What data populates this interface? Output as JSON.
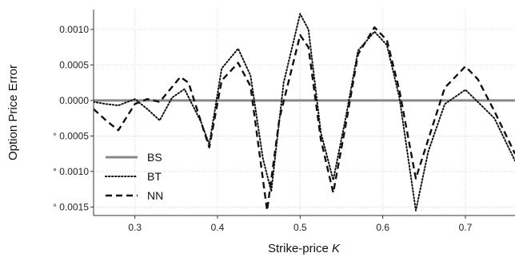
{
  "chart_data": {
    "type": "line",
    "title": "",
    "xlabel_text": "Strike-price ",
    "xlabel_var": "K",
    "ylabel": "Option Price Error",
    "xlim": [
      0.25,
      0.76
    ],
    "ylim": [
      -0.00162,
      0.00128
    ],
    "grid": true,
    "legend_position": "lower-left",
    "x_ticks": [
      {
        "value": 0.3,
        "label": "0.3"
      },
      {
        "value": 0.4,
        "label": "0.4"
      },
      {
        "value": 0.5,
        "label": "0.5"
      },
      {
        "value": 0.6,
        "label": "0.6"
      },
      {
        "value": 0.7,
        "label": "0.7"
      }
    ],
    "y_ticks": [
      {
        "value": 0.001,
        "label": "0.0010"
      },
      {
        "value": 0.0005,
        "label": "0.0005"
      },
      {
        "value": 0.0,
        "label": "0.0000"
      },
      {
        "value": -0.0005,
        "label": "° 0.0005"
      },
      {
        "value": -0.001,
        "label": "° 0.0010"
      },
      {
        "value": -0.0015,
        "label": "° 0.0015"
      }
    ],
    "series": [
      {
        "name": "BS",
        "style": "solid",
        "color": "#888888",
        "x": [
          0.25,
          0.76
        ],
        "y": [
          0.0,
          0.0
        ]
      },
      {
        "name": "BT",
        "style": "dotted",
        "color": "#111111",
        "x": [
          0.25,
          0.265,
          0.28,
          0.3,
          0.315,
          0.33,
          0.345,
          0.36,
          0.38,
          0.39,
          0.405,
          0.425,
          0.44,
          0.455,
          0.465,
          0.48,
          0.5,
          0.51,
          0.525,
          0.54,
          0.555,
          0.57,
          0.59,
          0.605,
          0.62,
          0.64,
          0.655,
          0.675,
          0.7,
          0.715,
          0.735,
          0.76
        ],
        "y": [
          -2e-05,
          -5e-05,
          -7e-05,
          2e-05,
          -0.00012,
          -0.00028,
          4e-05,
          0.00016,
          -0.0003,
          -0.00062,
          0.00045,
          0.00073,
          0.00035,
          -0.00082,
          -0.00128,
          0.00025,
          0.00122,
          0.001,
          -0.00045,
          -0.00112,
          -0.00025,
          0.0007,
          0.00097,
          0.00078,
          5e-05,
          -0.00155,
          -0.00072,
          -5e-05,
          0.00015,
          -2e-05,
          -0.00025,
          -0.00085
        ]
      },
      {
        "name": "NN",
        "style": "dashed",
        "color": "#111111",
        "x": [
          0.25,
          0.265,
          0.28,
          0.3,
          0.315,
          0.33,
          0.355,
          0.365,
          0.38,
          0.39,
          0.405,
          0.425,
          0.44,
          0.46,
          0.475,
          0.5,
          0.51,
          0.525,
          0.54,
          0.555,
          0.57,
          0.59,
          0.605,
          0.62,
          0.64,
          0.655,
          0.675,
          0.7,
          0.715,
          0.735,
          0.76
        ],
        "y": [
          -0.00012,
          -0.00028,
          -0.00042,
          -5e-05,
          2e-05,
          -2e-05,
          0.00033,
          0.00025,
          -0.0003,
          -0.00066,
          0.00028,
          0.00053,
          0.0002,
          -0.00155,
          -0.00025,
          0.00092,
          0.00075,
          -0.00055,
          -0.0013,
          -0.00035,
          0.00065,
          0.00103,
          0.00085,
          0.00015,
          -0.0011,
          -0.00055,
          0.00018,
          0.00048,
          0.0003,
          -0.00015,
          -0.00075
        ]
      }
    ]
  }
}
